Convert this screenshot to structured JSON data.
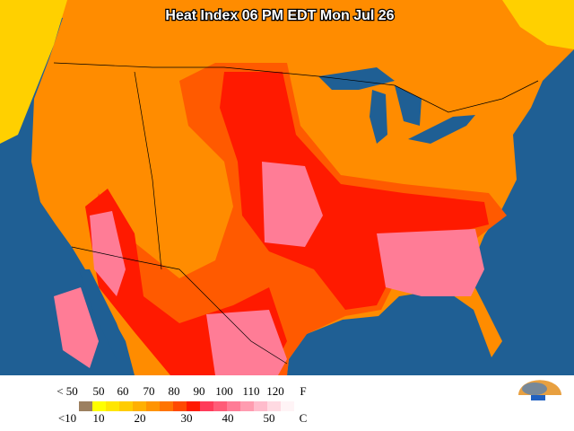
{
  "map": {
    "title": "Heat Index 06 PM EDT Mon Jul 26"
  },
  "legend": {
    "fahrenheit_labels": [
      "< 50",
      "50",
      "60",
      "70",
      "80",
      "90",
      "100",
      "110",
      "120"
    ],
    "fahrenheit_unit": "F",
    "celsius_labels": [
      "<10",
      "10",
      "20",
      "30",
      "40",
      "50"
    ],
    "celsius_unit": "C",
    "colors": [
      "#9c8060",
      "#ffff00",
      "#ffe600",
      "#ffcc00",
      "#ffb000",
      "#ff9400",
      "#ff7400",
      "#ff4a00",
      "#ff1a00",
      "#ff3c5a",
      "#ff5c78",
      "#ff7c96",
      "#ff9cb0",
      "#ffbccc",
      "#ffdae2",
      "#fff4f6"
    ]
  }
}
